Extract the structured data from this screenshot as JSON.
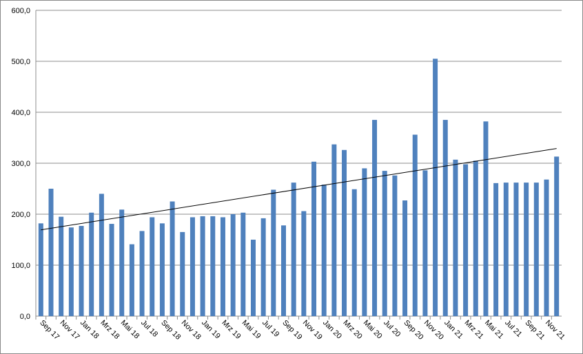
{
  "chart_data": {
    "type": "bar",
    "categories": [
      "Sep 17",
      null,
      "Nov 17",
      null,
      "Jan 18",
      null,
      "Mrz 18",
      null,
      "Mai 18",
      null,
      "Jul 18",
      null,
      "Sep 18",
      null,
      "Nov 18",
      null,
      "Jan 19",
      null,
      "Mrz 19",
      null,
      "Mai 19",
      null,
      "Jul 19",
      null,
      "Sep 19",
      null,
      "Nov 19",
      null,
      "Jan 20",
      null,
      "Mrz 20",
      null,
      "Mai 20",
      null,
      "Jul 20",
      null,
      "Sep 20",
      null,
      "Nov 20",
      null,
      "Jan 21",
      null,
      "Mrz 21",
      null,
      "Mai 21",
      null,
      "Jul 21",
      null,
      "Sep 21",
      null,
      "Nov 21",
      null
    ],
    "values": [
      182,
      250,
      195,
      174,
      177,
      203,
      240,
      181,
      209,
      141,
      167,
      194,
      182,
      225,
      165,
      194,
      196,
      196,
      194,
      200,
      203,
      150,
      192,
      248,
      178,
      262,
      206,
      303,
      258,
      337,
      326,
      249,
      290,
      385,
      285,
      276,
      227,
      356,
      286,
      505,
      385,
      307,
      298,
      305,
      382,
      261,
      262,
      262,
      262,
      262,
      268,
      313
    ],
    "color": "#4f81bd",
    "trendline": "linear",
    "ylim": [
      0,
      600
    ],
    "yticks": [
      {
        "value": 0,
        "label": "0,0"
      },
      {
        "value": 100,
        "label": "100,0"
      },
      {
        "value": 200,
        "label": "200,0"
      },
      {
        "value": 300,
        "label": "300,0"
      },
      {
        "value": 400,
        "label": "400,0"
      },
      {
        "value": 500,
        "label": "500,0"
      },
      {
        "value": 600,
        "label": "600,0"
      }
    ],
    "grid": true
  }
}
